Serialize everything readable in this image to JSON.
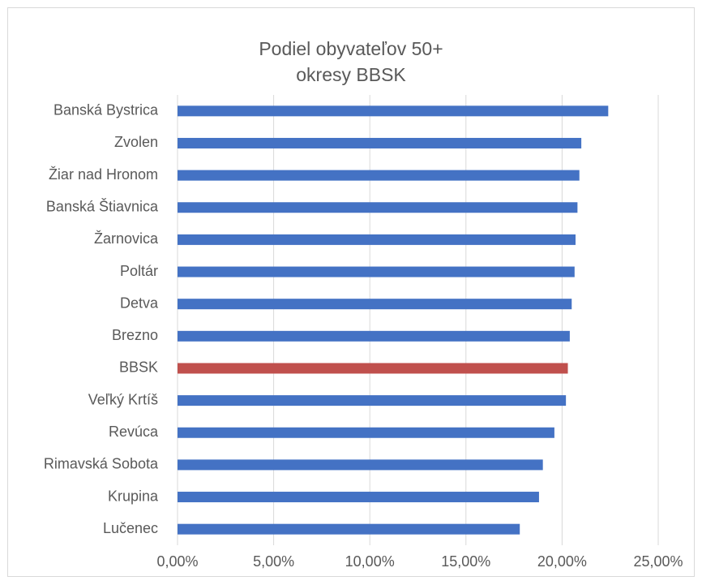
{
  "chart_data": {
    "type": "bar",
    "orientation": "horizontal",
    "title": [
      "Podiel obyvateľov 50+",
      "okresy BBSK"
    ],
    "categories": [
      "Banská Bystrica",
      "Zvolen",
      "Žiar nad Hronom",
      "Banská Štiavnica",
      "Žarnovica",
      "Poltár",
      "Detva",
      "Brezno",
      "BBSK",
      "Veľký Krtíš",
      "Revúca",
      "Rimavská Sobota",
      "Krupina",
      "Lučenec"
    ],
    "values": [
      22.4,
      21.0,
      20.9,
      20.8,
      20.7,
      20.65,
      20.5,
      20.4,
      20.3,
      20.2,
      19.6,
      19.0,
      18.8,
      17.8
    ],
    "colors": [
      "#4472c4",
      "#4472c4",
      "#4472c4",
      "#4472c4",
      "#4472c4",
      "#4472c4",
      "#4472c4",
      "#4472c4",
      "#c0504d",
      "#4472c4",
      "#4472c4",
      "#4472c4",
      "#4472c4",
      "#4472c4"
    ],
    "xlim": [
      0,
      25
    ],
    "xticks": [
      {
        "value": 0,
        "label": "0,00%"
      },
      {
        "value": 5,
        "label": "5,00%"
      },
      {
        "value": 10,
        "label": "10,00%"
      },
      {
        "value": 15,
        "label": "15,00%"
      },
      {
        "value": 20,
        "label": "20,00%"
      },
      {
        "value": 25,
        "label": "25,00%"
      }
    ],
    "grid": true
  }
}
